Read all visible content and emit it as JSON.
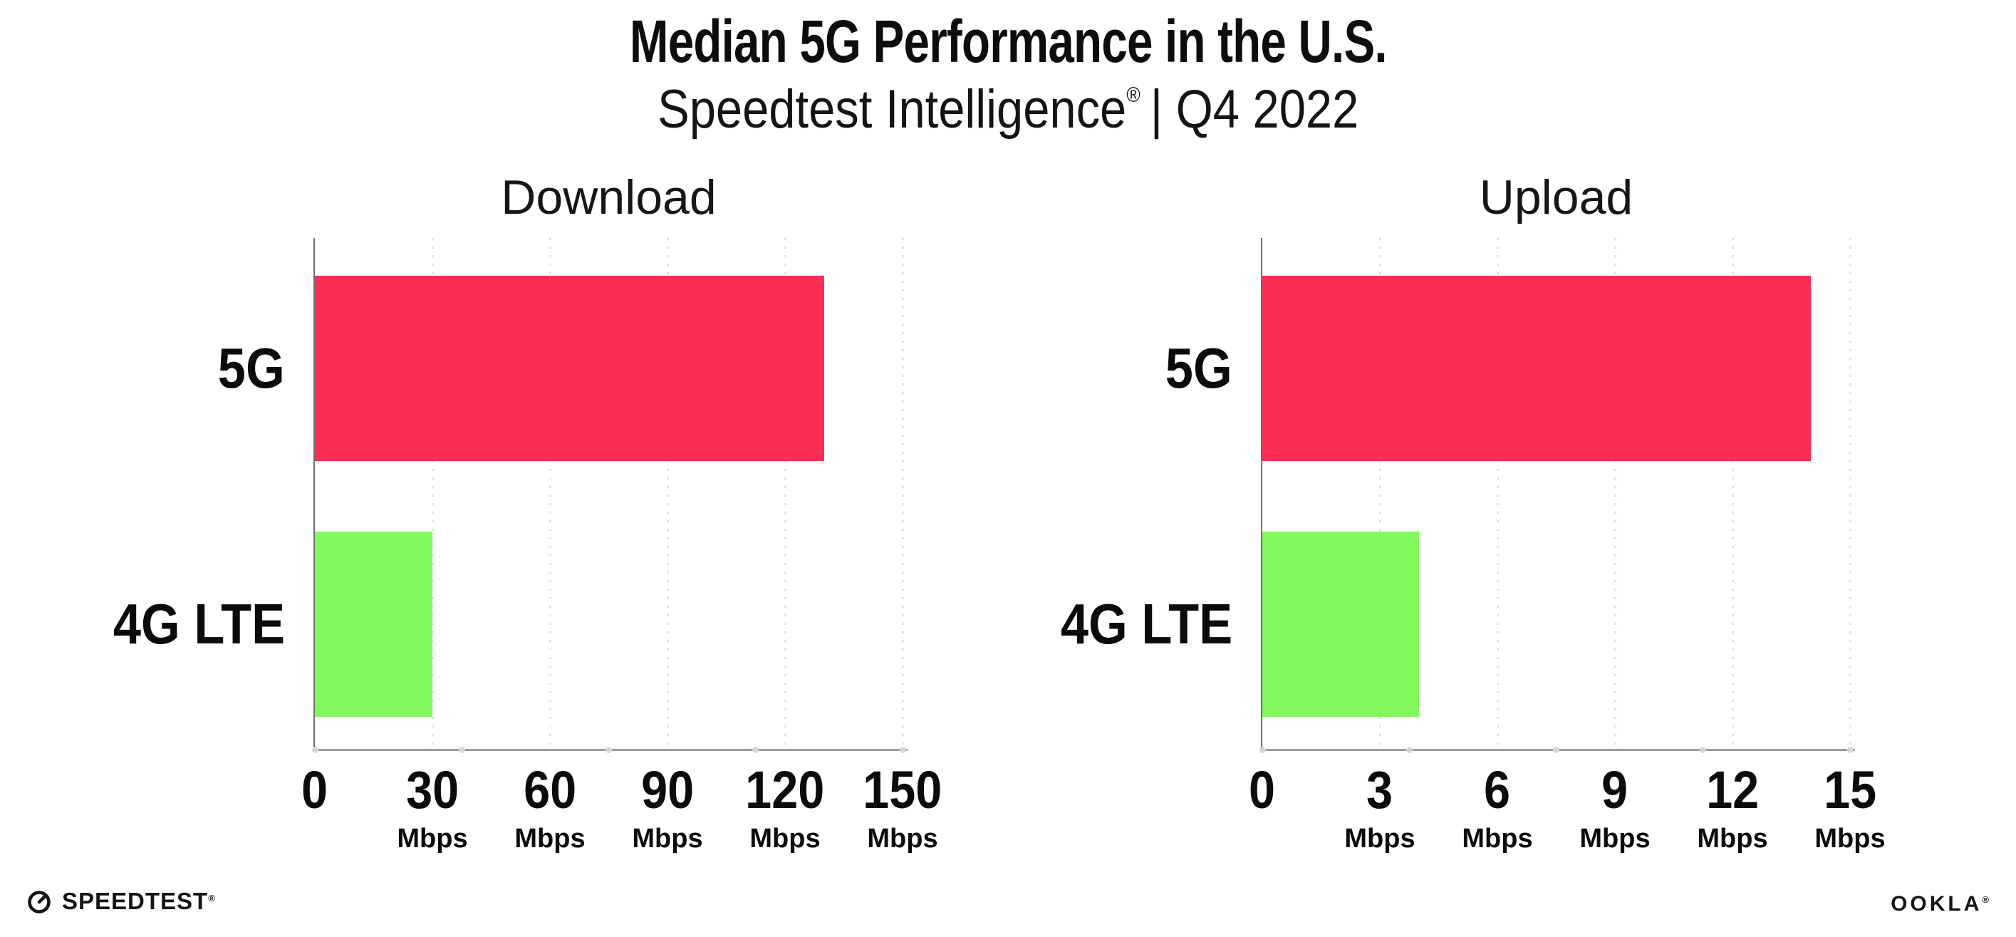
{
  "header": {
    "title": "Median 5G Performance in the U.S.",
    "subtitle_brand": "Speedtest Intelligence",
    "subtitle_registered": "®",
    "subtitle_rest": "| Q4 2022"
  },
  "chart_data": [
    {
      "type": "bar",
      "orientation": "horizontal",
      "title": "Download",
      "categories": [
        "5G",
        "4G LTE"
      ],
      "values": [
        130,
        30
      ],
      "unit": "Mbps",
      "colors": [
        "#fc2e56",
        "#81f95d"
      ],
      "xlim": [
        0,
        150
      ],
      "xticks": [
        0,
        30,
        60,
        90,
        120,
        150
      ],
      "grid": "vertical-dotted",
      "legend": "none"
    },
    {
      "type": "bar",
      "orientation": "horizontal",
      "title": "Upload",
      "categories": [
        "5G",
        "4G LTE"
      ],
      "values": [
        14,
        4
      ],
      "unit": "Mbps",
      "colors": [
        "#fc2e56",
        "#81f95d"
      ],
      "xlim": [
        0,
        15
      ],
      "xticks": [
        0,
        3,
        6,
        9,
        12,
        15
      ],
      "grid": "vertical-dotted",
      "legend": "none"
    }
  ],
  "footer": {
    "speedtest_label": "SPEEDTEST",
    "speedtest_mark": "®",
    "ookla_label": "OOKLA",
    "ookla_mark": "®"
  }
}
